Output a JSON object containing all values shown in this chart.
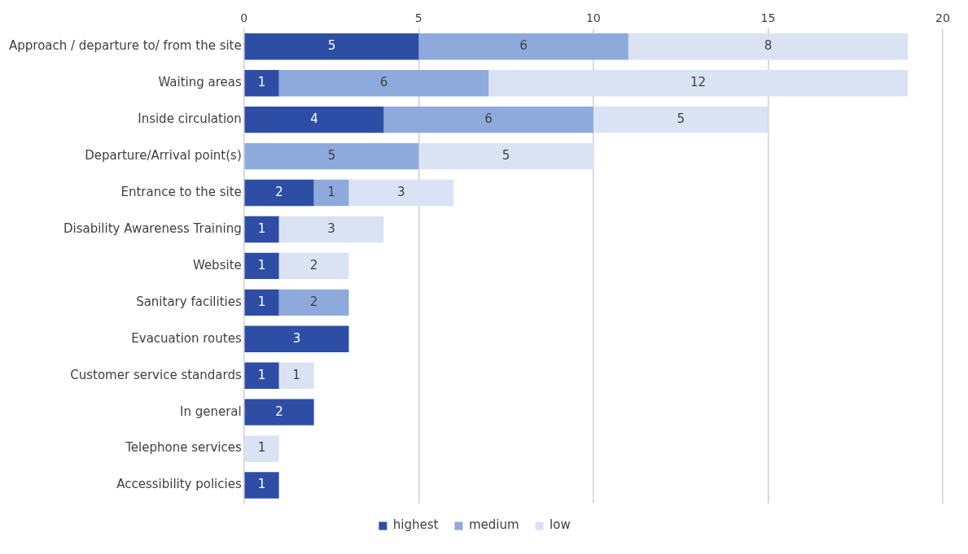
{
  "chart_data": {
    "type": "bar",
    "orientation": "horizontal",
    "stacked": true,
    "categories": [
      "Approach / departure to/ from the site",
      "Waiting areas",
      "Inside circulation",
      "Departure/Arrival point(s)",
      "Entrance to the site",
      "Disability Awareness Training",
      "Website",
      "Sanitary facilities",
      "Evacuation routes",
      "Customer service standards",
      "In general",
      "Telephone services",
      "Accessibility policies"
    ],
    "series": [
      {
        "name": "highest",
        "color": "#2e4ea6",
        "values": [
          5,
          1,
          4,
          null,
          2,
          1,
          1,
          1,
          3,
          1,
          2,
          null,
          1
        ]
      },
      {
        "name": "medium",
        "color": "#8eaadc",
        "values": [
          6,
          6,
          6,
          5,
          1,
          null,
          null,
          2,
          null,
          null,
          null,
          null,
          null
        ]
      },
      {
        "name": "low",
        "color": "#dae3f3",
        "values": [
          8,
          12,
          5,
          5,
          3,
          3,
          2,
          null,
          null,
          1,
          null,
          1,
          null
        ]
      }
    ],
    "xlim": [
      0,
      20
    ],
    "xticks": [
      0,
      5,
      10,
      15,
      20
    ],
    "grid": "x",
    "legend": "bottom",
    "data_labels": true
  }
}
